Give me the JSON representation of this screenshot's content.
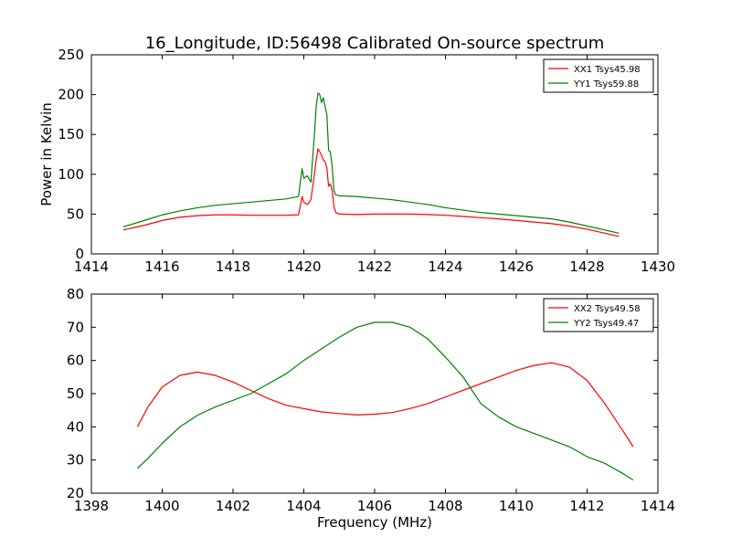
{
  "title": "16_Longitude, ID:56498 Calibrated On-source spectrum",
  "chart_data": [
    {
      "type": "line",
      "xlabel": "",
      "ylabel": "Power in Kelvin",
      "xlim": [
        1414,
        1430
      ],
      "ylim": [
        0,
        250
      ],
      "xticks": [
        1414,
        1416,
        1418,
        1420,
        1422,
        1424,
        1426,
        1428,
        1430
      ],
      "yticks": [
        0,
        50,
        100,
        150,
        200,
        250
      ],
      "legend_position": "top-right",
      "series": [
        {
          "name": "XX1 Tsys45.98",
          "color": "#ff0000",
          "x": [
            1414.9,
            1415.5,
            1416.0,
            1416.5,
            1417.0,
            1417.5,
            1418.0,
            1418.5,
            1419.0,
            1419.5,
            1419.85,
            1419.9,
            1419.95,
            1420.0,
            1420.1,
            1420.2,
            1420.3,
            1420.35,
            1420.4,
            1420.45,
            1420.5,
            1420.55,
            1420.6,
            1420.65,
            1420.7,
            1420.75,
            1420.8,
            1420.85,
            1420.9,
            1421.0,
            1421.5,
            1422.0,
            1422.5,
            1423.0,
            1423.5,
            1424.0,
            1424.5,
            1425.0,
            1425.5,
            1426.0,
            1426.5,
            1427.0,
            1427.5,
            1428.0,
            1428.5,
            1428.9
          ],
          "y": [
            30,
            36,
            42,
            46,
            48,
            49,
            49,
            48.5,
            48.5,
            48.5,
            49,
            60,
            72,
            65,
            62,
            68,
            100,
            118,
            132,
            128,
            124,
            118,
            116,
            108,
            85,
            88,
            80,
            60,
            52,
            50,
            49.5,
            50,
            50,
            50,
            49.5,
            48.5,
            47,
            45.5,
            44,
            42,
            40,
            38,
            35,
            31,
            26,
            22
          ]
        },
        {
          "name": "YY1 Tsys59.88",
          "color": "#008000",
          "x": [
            1414.9,
            1415.5,
            1416.0,
            1416.5,
            1417.0,
            1417.5,
            1418.0,
            1418.5,
            1419.0,
            1419.5,
            1419.85,
            1419.9,
            1419.95,
            1420.0,
            1420.1,
            1420.2,
            1420.3,
            1420.35,
            1420.4,
            1420.45,
            1420.5,
            1420.55,
            1420.6,
            1420.65,
            1420.7,
            1420.75,
            1420.8,
            1420.85,
            1420.9,
            1421.0,
            1421.5,
            1422.0,
            1422.5,
            1423.0,
            1423.5,
            1424.0,
            1424.5,
            1425.0,
            1425.5,
            1426.0,
            1426.5,
            1427.0,
            1427.5,
            1428.0,
            1428.5,
            1428.9
          ],
          "y": [
            34,
            42,
            49,
            54,
            58,
            61,
            63,
            65,
            67,
            69,
            72,
            90,
            107,
            95,
            98,
            90,
            150,
            185,
            202,
            200,
            190,
            196,
            185,
            175,
            130,
            128,
            110,
            80,
            74,
            73,
            72,
            70,
            68,
            65,
            62,
            58,
            55,
            52,
            50,
            48,
            46,
            44,
            40,
            35,
            30,
            26
          ]
        }
      ]
    },
    {
      "type": "line",
      "xlabel": "Frequency (MHz)",
      "ylabel": "",
      "xlim": [
        1398,
        1414
      ],
      "ylim": [
        20,
        80
      ],
      "xticks": [
        1398,
        1400,
        1402,
        1404,
        1406,
        1408,
        1410,
        1412,
        1414
      ],
      "yticks": [
        20,
        30,
        40,
        50,
        60,
        70,
        80
      ],
      "legend_position": "top-right",
      "series": [
        {
          "name": "XX2 Tsys49.58",
          "color": "#ff0000",
          "x": [
            1399.3,
            1399.6,
            1400.0,
            1400.5,
            1401.0,
            1401.5,
            1402.0,
            1402.5,
            1403.0,
            1403.5,
            1404.0,
            1404.5,
            1405.0,
            1405.5,
            1406.0,
            1406.5,
            1407.0,
            1407.5,
            1408.0,
            1408.5,
            1409.0,
            1409.5,
            1410.0,
            1410.5,
            1411.0,
            1411.5,
            1412.0,
            1412.5,
            1413.0,
            1413.3
          ],
          "y": [
            40,
            46,
            52,
            55.5,
            56.5,
            55.5,
            53.5,
            51,
            48.5,
            46.5,
            45.5,
            44.5,
            44,
            43.6,
            43.8,
            44.3,
            45.5,
            47,
            49,
            51,
            53,
            55,
            57,
            58.5,
            59.3,
            58,
            54,
            47,
            39,
            34
          ]
        },
        {
          "name": "YY2 Tsys49.47",
          "color": "#008000",
          "x": [
            1399.3,
            1399.6,
            1400.0,
            1400.5,
            1401.0,
            1401.5,
            1402.0,
            1402.5,
            1403.0,
            1403.5,
            1404.0,
            1404.5,
            1405.0,
            1405.5,
            1406.0,
            1406.5,
            1407.0,
            1407.5,
            1408.0,
            1408.5,
            1409.0,
            1409.5,
            1410.0,
            1410.5,
            1411.0,
            1411.5,
            1412.0,
            1412.5,
            1413.0,
            1413.3
          ],
          "y": [
            27.5,
            30.5,
            35,
            40,
            43.5,
            46,
            48,
            50,
            53,
            56,
            60,
            63.5,
            67,
            70,
            71.5,
            71.5,
            70,
            66.5,
            61,
            55,
            47,
            43,
            40,
            38,
            36,
            34,
            31,
            29,
            26,
            24
          ]
        }
      ]
    }
  ]
}
